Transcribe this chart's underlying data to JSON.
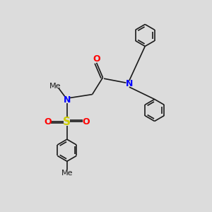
{
  "bg_color": "#dcdcdc",
  "bond_color": "#1a1a1a",
  "N_color": "#0000ff",
  "O_color": "#ff0000",
  "S_color": "#cccc00",
  "line_width": 1.2,
  "figsize": [
    3.0,
    3.0
  ],
  "dpi": 100,
  "xlim": [
    0,
    10
  ],
  "ylim": [
    0,
    10
  ]
}
